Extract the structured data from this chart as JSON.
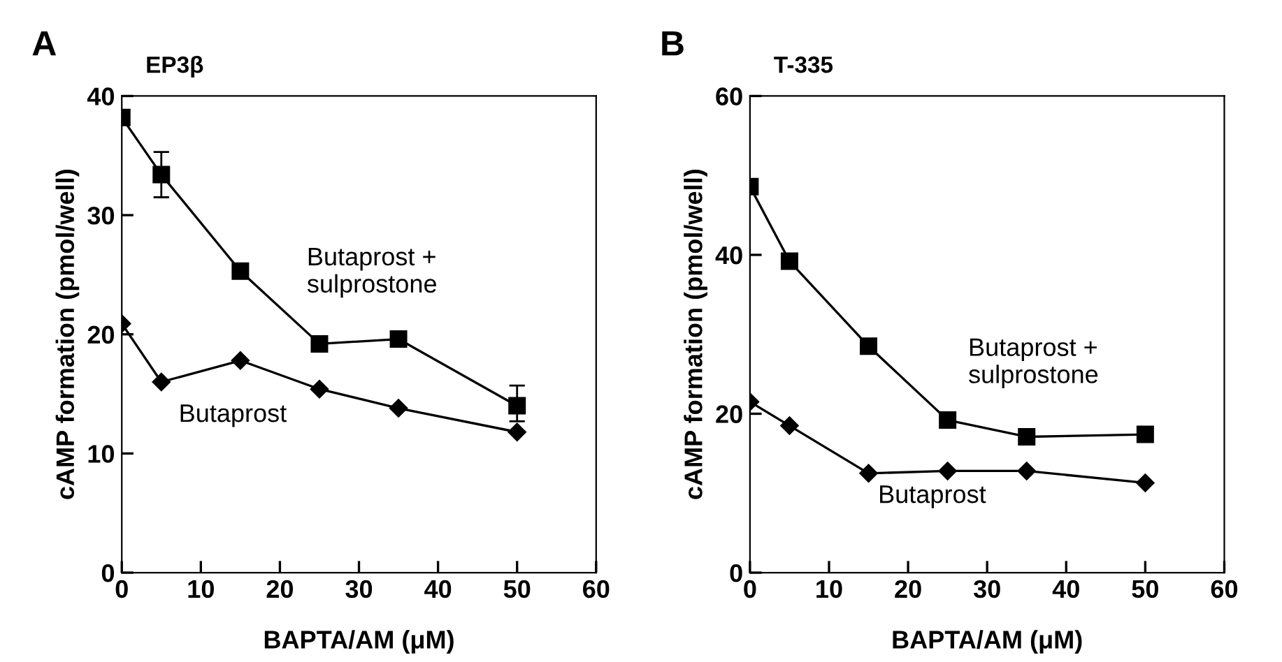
{
  "chart_data": [
    {
      "type": "line",
      "title": "EP3β",
      "xlabel": "BAPTA/AM (μM)",
      "ylabel": "cAMP formation (pmol/well)",
      "x": [
        0,
        5,
        15,
        25,
        35,
        50
      ],
      "xlim": [
        0,
        60
      ],
      "xticks": [
        0,
        10,
        20,
        30,
        40,
        50,
        60
      ],
      "ylim": [
        0,
        40
      ],
      "yticks": [
        0,
        10,
        20,
        30,
        40
      ],
      "grid": false,
      "legend": false,
      "series": [
        {
          "name": "Butaprost +\nsulprostone",
          "color": "#000000",
          "marker": "square",
          "values": [
            38.2,
            33.4,
            25.3,
            19.2,
            19.6,
            14.0
          ],
          "errors": [
            null,
            [
              31.5,
              35.3
            ],
            null,
            null,
            null,
            [
              12.7,
              15.7
            ]
          ]
        },
        {
          "name": "Butaprost",
          "color": "#000000",
          "marker": "diamond",
          "values": [
            20.9,
            16.0,
            17.8,
            15.4,
            13.8,
            11.8
          ]
        }
      ],
      "annotations": [
        "A"
      ]
    },
    {
      "type": "line",
      "title": "T-335",
      "xlabel": "BAPTA/AM (μM)",
      "ylabel": "cAMP formation (pmol/well)",
      "x": [
        0,
        5,
        15,
        25,
        35,
        50
      ],
      "xlim": [
        0,
        60
      ],
      "xticks": [
        0,
        10,
        20,
        30,
        40,
        50,
        60
      ],
      "ylim": [
        0,
        60
      ],
      "yticks": [
        0,
        20,
        40,
        60
      ],
      "grid": false,
      "legend": false,
      "series": [
        {
          "name": "Butaprost +\nsulprostone",
          "color": "#000000",
          "marker": "square",
          "values": [
            48.6,
            39.2,
            28.5,
            19.2,
            17.1,
            17.4
          ]
        },
        {
          "name": "Butaprost",
          "color": "#000000",
          "marker": "diamond",
          "values": [
            21.5,
            18.5,
            12.5,
            12.8,
            12.8,
            11.3
          ]
        }
      ],
      "annotations": [
        "B"
      ]
    }
  ]
}
